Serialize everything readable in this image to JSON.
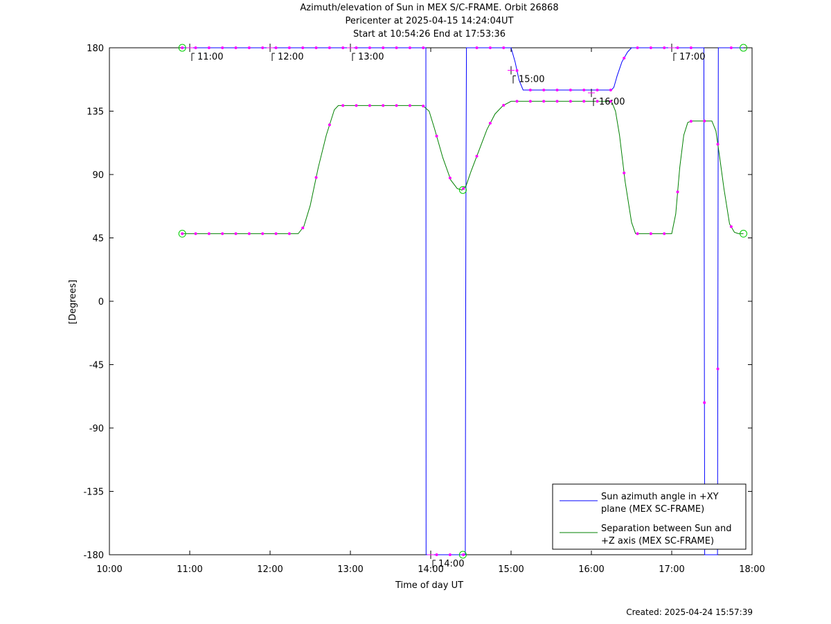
{
  "page": {
    "title_lines": [
      "Azimuth/elevation of Sun in MEX S/C-FRAME.  Orbit 26868",
      "Pericenter at 2025-04-15 14:24:04UT",
      "Start at 10:54:26 End at 17:53:36"
    ],
    "created": "Created: 2025-04-24 15:57:39"
  },
  "chart_data": {
    "type": "line",
    "title": "Azimuth/elevation of Sun in MEX S/C-FRAME.  Orbit 26868",
    "xlabel": "Time of day UT",
    "ylabel": "[Degrees]",
    "xlim": [
      10.0,
      18.0
    ],
    "ylim": [
      -180,
      180
    ],
    "xticks": [
      {
        "v": 10,
        "label": "10:00"
      },
      {
        "v": 11,
        "label": "11:00"
      },
      {
        "v": 12,
        "label": "12:00"
      },
      {
        "v": 13,
        "label": "13:00"
      },
      {
        "v": 14,
        "label": "14:00"
      },
      {
        "v": 15,
        "label": "15:00"
      },
      {
        "v": 16,
        "label": "16:00"
      },
      {
        "v": 17,
        "label": "17:00"
      },
      {
        "v": 18,
        "label": "18:00"
      }
    ],
    "yticks": [
      180,
      135,
      90,
      45,
      0,
      -45,
      -90,
      -135,
      -180
    ],
    "legend_position": "bottom-right",
    "series": [
      {
        "name": "Sun azimuth angle in +XY plane (MEX SC-FRAME)",
        "legend_lines": [
          "Sun azimuth angle in +XY",
          "plane (MEX SC-FRAME)"
        ],
        "color": "#0000ff",
        "x": [
          10.907,
          13.9,
          13.94,
          13.942,
          13.95,
          14.43,
          14.435,
          14.44,
          14.445,
          14.6,
          15.0,
          15.05,
          15.1,
          15.15,
          15.5,
          16.0,
          16.25,
          16.28,
          16.32,
          16.38,
          16.45,
          16.5,
          17.0,
          17.38,
          17.4,
          17.405,
          17.41,
          17.55,
          17.57,
          17.575,
          17.58,
          17.893
        ],
        "y": [
          180,
          180,
          180,
          -180,
          -180,
          -180,
          0,
          100,
          180,
          180,
          180,
          170,
          157,
          150,
          150,
          150,
          150,
          152,
          160,
          170,
          177,
          180,
          180,
          180,
          180,
          0,
          -180,
          -180,
          -180,
          0,
          180,
          180
        ]
      },
      {
        "name": "Separation between Sun and +Z axis (MEX SC-FRAME)",
        "legend_lines": [
          "Separation between Sun and",
          "+Z axis (MEX SC-FRAME)"
        ],
        "color": "#008000",
        "x": [
          10.907,
          12.0,
          12.35,
          12.42,
          12.5,
          12.6,
          12.7,
          12.8,
          12.85,
          13.5,
          13.9,
          13.98,
          14.05,
          14.15,
          14.25,
          14.33,
          14.39,
          14.44,
          14.5,
          14.6,
          14.7,
          14.8,
          14.9,
          15.0,
          15.5,
          16.0,
          16.25,
          16.3,
          16.35,
          16.42,
          16.5,
          16.55,
          17.0,
          17.05,
          17.1,
          17.15,
          17.2,
          17.25,
          17.5,
          17.55,
          17.6,
          17.65,
          17.72,
          17.78,
          17.83,
          17.893
        ],
        "y": [
          48,
          48,
          48,
          53,
          68,
          95,
          118,
          136,
          139,
          139,
          139,
          135,
          122,
          102,
          86,
          80,
          79,
          82,
          92,
          107,
          122,
          133,
          139,
          142,
          142,
          142,
          142,
          135,
          118,
          85,
          56,
          48,
          48,
          62,
          95,
          118,
          127,
          128,
          128,
          121,
          101,
          80,
          55,
          49,
          48,
          48
        ]
      }
    ],
    "annotations": [
      {
        "label": "11:00",
        "x": 11.0,
        "y": 180
      },
      {
        "label": "12:00",
        "x": 12.0,
        "y": 180
      },
      {
        "label": "13:00",
        "x": 13.0,
        "y": 180
      },
      {
        "label": "14:00",
        "x": 14.0,
        "y": -180
      },
      {
        "label": "15:00",
        "x": 15.0,
        "y": 164
      },
      {
        "label": "16:00",
        "x": 16.0,
        "y": 148
      },
      {
        "label": "17:00",
        "x": 17.0,
        "y": 180
      }
    ]
  }
}
